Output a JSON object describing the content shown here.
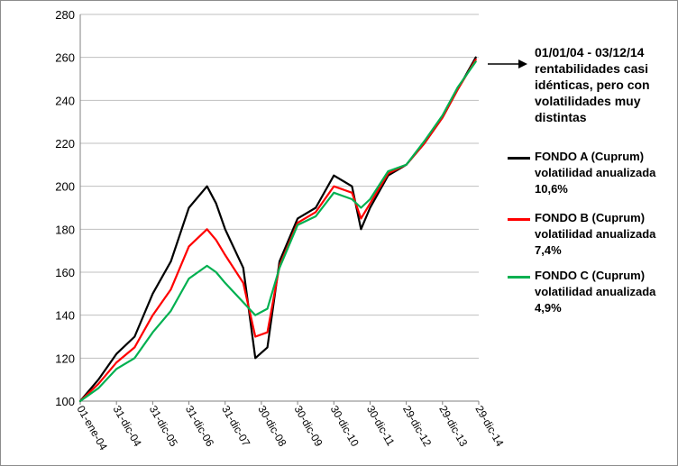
{
  "colors": {
    "fondo_a": "#000000",
    "fondo_b": "#ff0000",
    "fondo_c": "#00b050",
    "grid": "#bfbfbf"
  },
  "annotation": {
    "lines": [
      "01/01/04 - 03/12/14",
      "rentabilidades casi",
      "idénticas, pero con",
      "volatilidades muy",
      "distintas"
    ]
  },
  "legend": [
    {
      "series": "FONDO A (Cuprum)",
      "line2": "volatilidad anualizada",
      "line3": "10,6%"
    },
    {
      "series": "FONDO B (Cuprum)",
      "line2": "volatilidad anualizada",
      "line3": "7,4%"
    },
    {
      "series": "FONDO C (Cuprum)",
      "line2": "volatilidad anualizada",
      "line3": "4,9%"
    }
  ],
  "chart_data": {
    "type": "line",
    "title": "",
    "xlabel": "",
    "ylabel": "",
    "ylim": [
      100,
      280
    ],
    "yticks": [
      100,
      120,
      140,
      160,
      180,
      200,
      220,
      240,
      260,
      280
    ],
    "grid": "horizontal",
    "x_ticks": [
      "01-ene-04",
      "31-dic-04",
      "31-dic-05",
      "31-dic-06",
      "31-dic-07",
      "30-dic-08",
      "30-dic-09",
      "30-dic-10",
      "30-dic-11",
      "29-dic-12",
      "29-dic-13",
      "29-dic-14"
    ],
    "x": [
      "2004-01",
      "2004-07",
      "2005-01",
      "2005-07",
      "2006-01",
      "2006-07",
      "2007-01",
      "2007-07",
      "2007-10",
      "2008-01",
      "2008-07",
      "2008-11",
      "2009-03",
      "2009-07",
      "2010-01",
      "2010-07",
      "2011-01",
      "2011-07",
      "2011-10",
      "2012-01",
      "2012-07",
      "2013-01",
      "2013-07",
      "2014-01",
      "2014-06",
      "2014-12"
    ],
    "series": [
      {
        "name": "FONDO A (Cuprum)",
        "color": "#000000",
        "values": [
          100,
          110,
          122,
          130,
          150,
          165,
          190,
          200,
          192,
          180,
          162,
          120,
          125,
          165,
          185,
          190,
          205,
          200,
          180,
          190,
          205,
          210,
          220,
          232,
          245,
          260
        ]
      },
      {
        "name": "FONDO B (Cuprum)",
        "color": "#ff0000",
        "values": [
          100,
          108,
          118,
          125,
          140,
          152,
          172,
          180,
          175,
          168,
          155,
          130,
          132,
          163,
          183,
          188,
          200,
          197,
          185,
          192,
          206,
          210,
          220,
          232,
          245,
          259
        ]
      },
      {
        "name": "FONDO C (Cuprum)",
        "color": "#00b050",
        "values": [
          100,
          106,
          115,
          120,
          132,
          142,
          157,
          163,
          160,
          155,
          146,
          140,
          143,
          162,
          182,
          186,
          197,
          194,
          190,
          194,
          207,
          210,
          221,
          233,
          246,
          258
        ]
      }
    ],
    "annotations": [
      "01/01/04 - 03/12/14 rentabilidades casi idénticas, pero con volatilidades muy distintas"
    ],
    "legend_position": "right"
  }
}
